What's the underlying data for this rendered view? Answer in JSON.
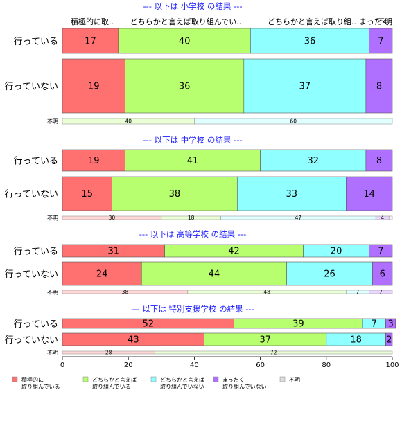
{
  "chart_data": {
    "type": "bar",
    "orientation": "horizontal",
    "stacked": true,
    "xlim": [
      0,
      100
    ],
    "x_ticks": [
      "0",
      "20",
      "40",
      "60",
      "80",
      "100"
    ],
    "category_headers": [
      "積極的に取..",
      "どちらかと言えば取り組んでい..",
      "どちらかと言えば取り組..",
      "まったく",
      "不明"
    ],
    "colors": [
      "#ff7070",
      "#b8ff70",
      "#90ffff",
      "#b070ff",
      "#dddddd"
    ],
    "panels": [
      {
        "title": "--- 以下は 小学校 の結果 ---",
        "rows": [
          {
            "label": "行っている",
            "values": [
              17,
              40,
              36,
              7,
              0
            ],
            "value_labels": [
              "17",
              "40",
              "36",
              "7",
              ""
            ]
          },
          {
            "label": "行っていない",
            "values": [
              19,
              36,
              37,
              8,
              0
            ],
            "value_labels": [
              "19",
              "36",
              "37",
              "8",
              ""
            ]
          }
        ],
        "unknown": {
          "label": "不明",
          "values": [
            0,
            40,
            60,
            0,
            0
          ],
          "value_labels": [
            "",
            "40",
            "60",
            "",
            ""
          ]
        }
      },
      {
        "title": "--- 以下は 中学校 の結果 ---",
        "rows": [
          {
            "label": "行っている",
            "values": [
              19,
              41,
              32,
              8,
              0
            ],
            "value_labels": [
              "19",
              "41",
              "32",
              "8",
              ""
            ]
          },
          {
            "label": "行っていない",
            "values": [
              15,
              38,
              33,
              14,
              0
            ],
            "value_labels": [
              "15",
              "38",
              "33",
              "14",
              ""
            ]
          }
        ],
        "unknown": {
          "label": "不明",
          "values": [
            30,
            18,
            47,
            4,
            1
          ],
          "value_labels": [
            "30",
            "18",
            "47",
            "4",
            ""
          ]
        }
      },
      {
        "title": "--- 以下は 高等学校 の結果 ---",
        "rows": [
          {
            "label": "行っている",
            "values": [
              31,
              42,
              20,
              7,
              0
            ],
            "value_labels": [
              "31",
              "42",
              "20",
              "7",
              ""
            ]
          },
          {
            "label": "行っていない",
            "values": [
              24,
              44,
              26,
              6,
              0
            ],
            "value_labels": [
              "24",
              "44",
              "26",
              "6",
              ""
            ]
          }
        ],
        "unknown": {
          "label": "不明",
          "values": [
            38,
            48,
            7,
            7,
            0
          ],
          "value_labels": [
            "38",
            "48",
            "7",
            "7",
            ""
          ]
        }
      },
      {
        "title": "--- 以下は 特別支援学校 の結果 ---",
        "rows": [
          {
            "label": "行っている",
            "values": [
              52,
              39,
              7,
              3,
              0
            ],
            "value_labels": [
              "52",
              "39",
              "7",
              "3",
              ""
            ]
          },
          {
            "label": "行っていない",
            "values": [
              43,
              37,
              18,
              2,
              0
            ],
            "value_labels": [
              "43",
              "37",
              "18",
              "2",
              ""
            ]
          }
        ],
        "unknown": {
          "label": "不明",
          "values": [
            28,
            72,
            0,
            0,
            0
          ],
          "value_labels": [
            "28",
            "72",
            "",
            "",
            ""
          ]
        }
      }
    ],
    "legend": {
      "placement": "bottom-left",
      "entries": [
        {
          "line1": "積極的に",
          "line2": "取り組んでいる"
        },
        {
          "line1": "どちらかと言えば",
          "line2": "取り組んでいる"
        },
        {
          "line1": "どちらかと言えば",
          "line2": "取り組んでいない"
        },
        {
          "line1": "まったく",
          "line2": "取り組んでいない"
        },
        {
          "line1": "不明",
          "line2": ""
        }
      ]
    }
  }
}
